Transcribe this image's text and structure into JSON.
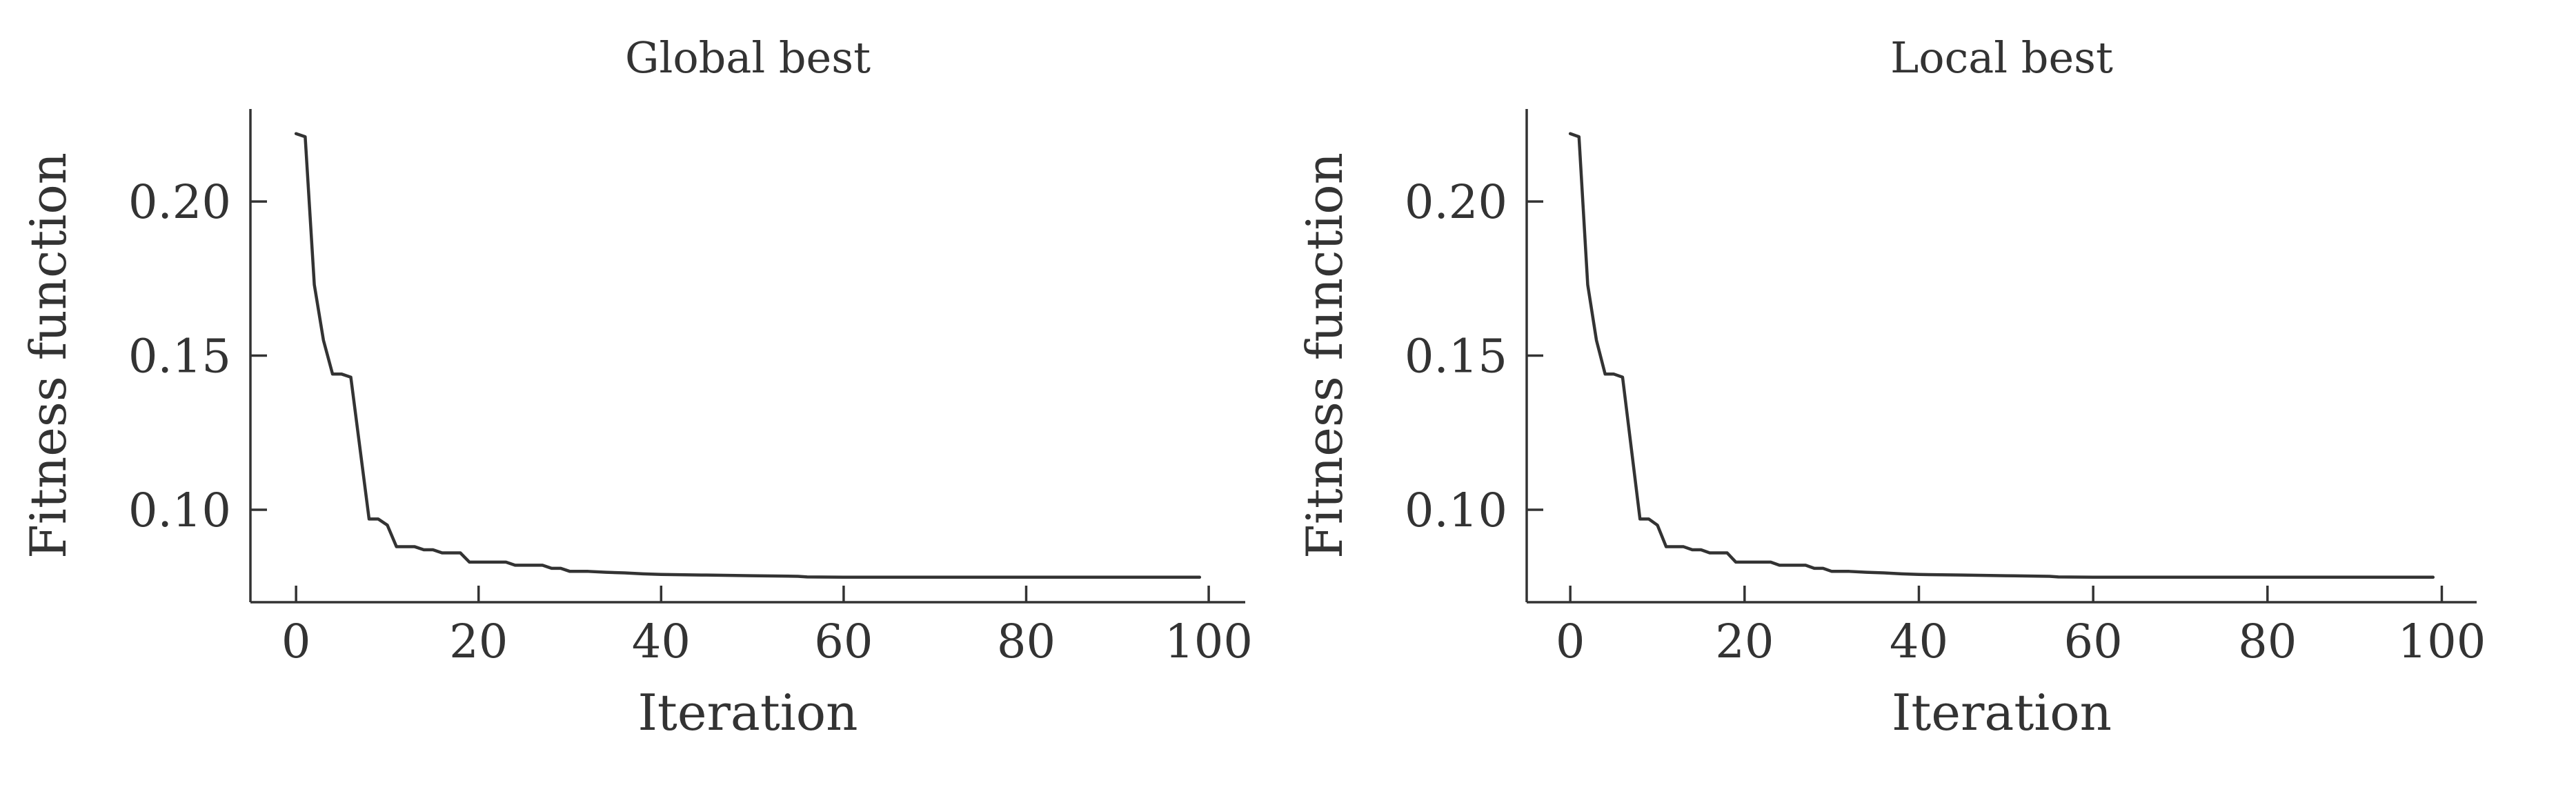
{
  "chart_data": [
    {
      "type": "line",
      "title": "Global best",
      "xlabel": "Iteration",
      "ylabel": "Fitness function",
      "xlim": [
        -5,
        104
      ],
      "ylim": [
        0.07,
        0.23
      ],
      "xticks": [
        0,
        20,
        40,
        60,
        80,
        100
      ],
      "yticks": [
        0.1,
        0.15,
        0.2
      ],
      "xtick_labels": [
        "0",
        "20",
        "40",
        "60",
        "80",
        "100"
      ],
      "ytick_labels": [
        "0.10",
        "0.15",
        "0.20"
      ],
      "grid": false,
      "line_color": "#333333",
      "series": [
        {
          "x": [
            0,
            1,
            2,
            3,
            4,
            5,
            6,
            7,
            8,
            9,
            10,
            11,
            12,
            13,
            14,
            15,
            16,
            17,
            18,
            19,
            20,
            21,
            22,
            23,
            24,
            25,
            26,
            27,
            28,
            29,
            30,
            32,
            34,
            36,
            38,
            40,
            45,
            50,
            55,
            56,
            60,
            65,
            70,
            75,
            80,
            85,
            90,
            95,
            99
          ],
          "values": [
            0.222,
            0.221,
            0.173,
            0.155,
            0.144,
            0.144,
            0.143,
            0.12,
            0.097,
            0.097,
            0.095,
            0.088,
            0.088,
            0.088,
            0.087,
            0.087,
            0.086,
            0.086,
            0.086,
            0.083,
            0.083,
            0.083,
            0.083,
            0.083,
            0.082,
            0.082,
            0.082,
            0.082,
            0.081,
            0.081,
            0.08,
            0.08,
            0.0797,
            0.0795,
            0.0792,
            0.079,
            0.0788,
            0.0786,
            0.0784,
            0.0782,
            0.0781,
            0.0781,
            0.0781,
            0.0781,
            0.0781,
            0.0781,
            0.0781,
            0.0781,
            0.0781
          ]
        }
      ]
    },
    {
      "type": "line",
      "title": "Local best",
      "xlabel": "Iteration",
      "ylabel": "Fitness function",
      "xlim": [
        -5,
        104
      ],
      "ylim": [
        0.07,
        0.23
      ],
      "xticks": [
        0,
        20,
        40,
        60,
        80,
        100
      ],
      "yticks": [
        0.1,
        0.15,
        0.2
      ],
      "xtick_labels": [
        "0",
        "20",
        "40",
        "60",
        "80",
        "100"
      ],
      "ytick_labels": [
        "0.10",
        "0.15",
        "0.20"
      ],
      "grid": false,
      "line_color": "#333333",
      "series": [
        {
          "x": [
            0,
            1,
            2,
            3,
            4,
            5,
            6,
            7,
            8,
            9,
            10,
            11,
            12,
            13,
            14,
            15,
            16,
            17,
            18,
            19,
            20,
            21,
            22,
            23,
            24,
            25,
            26,
            27,
            28,
            29,
            30,
            32,
            34,
            36,
            38,
            40,
            45,
            50,
            55,
            56,
            60,
            65,
            70,
            75,
            80,
            85,
            90,
            95,
            99
          ],
          "values": [
            0.222,
            0.221,
            0.173,
            0.155,
            0.144,
            0.144,
            0.143,
            0.12,
            0.097,
            0.097,
            0.095,
            0.088,
            0.088,
            0.088,
            0.087,
            0.087,
            0.086,
            0.086,
            0.086,
            0.083,
            0.083,
            0.083,
            0.083,
            0.083,
            0.082,
            0.082,
            0.082,
            0.082,
            0.081,
            0.081,
            0.08,
            0.08,
            0.0797,
            0.0795,
            0.0792,
            0.079,
            0.0788,
            0.0786,
            0.0784,
            0.0782,
            0.0781,
            0.0781,
            0.0781,
            0.0781,
            0.0781,
            0.0781,
            0.0781,
            0.0781,
            0.0781
          ]
        }
      ]
    }
  ]
}
